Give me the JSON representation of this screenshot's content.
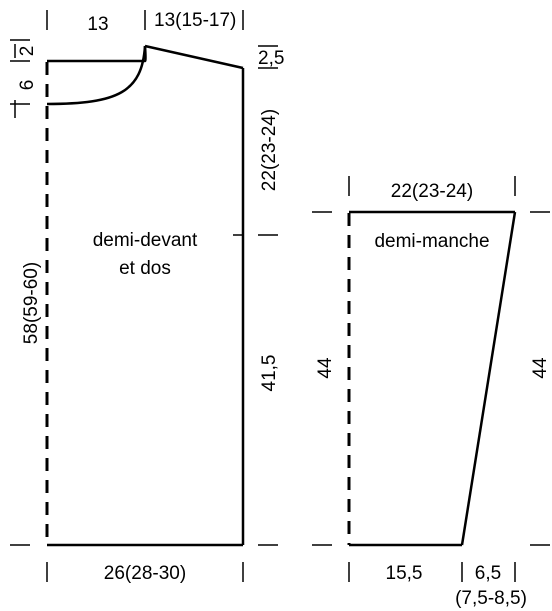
{
  "pattern": {
    "body_piece": {
      "name_line1": "demi-devant",
      "name_line2": "et dos",
      "top_left_width": "13",
      "shoulder_width": "13(15-17)",
      "neck_depth_top": "2",
      "neck_depth": "6",
      "shoulder_drop": "2,5",
      "armhole_height": "22(23-24)",
      "side_height": "41,5",
      "total_height": "58(59-60)",
      "bottom_width": "26(28-30)"
    },
    "sleeve_piece": {
      "name": "demi-manche",
      "top_width": "22(23-24)",
      "left_height": "44",
      "right_height": "44",
      "bottom_width": "15,5",
      "cuff_extra": "6,5",
      "cuff_extra_sizes": "(7,5-8,5)"
    }
  }
}
